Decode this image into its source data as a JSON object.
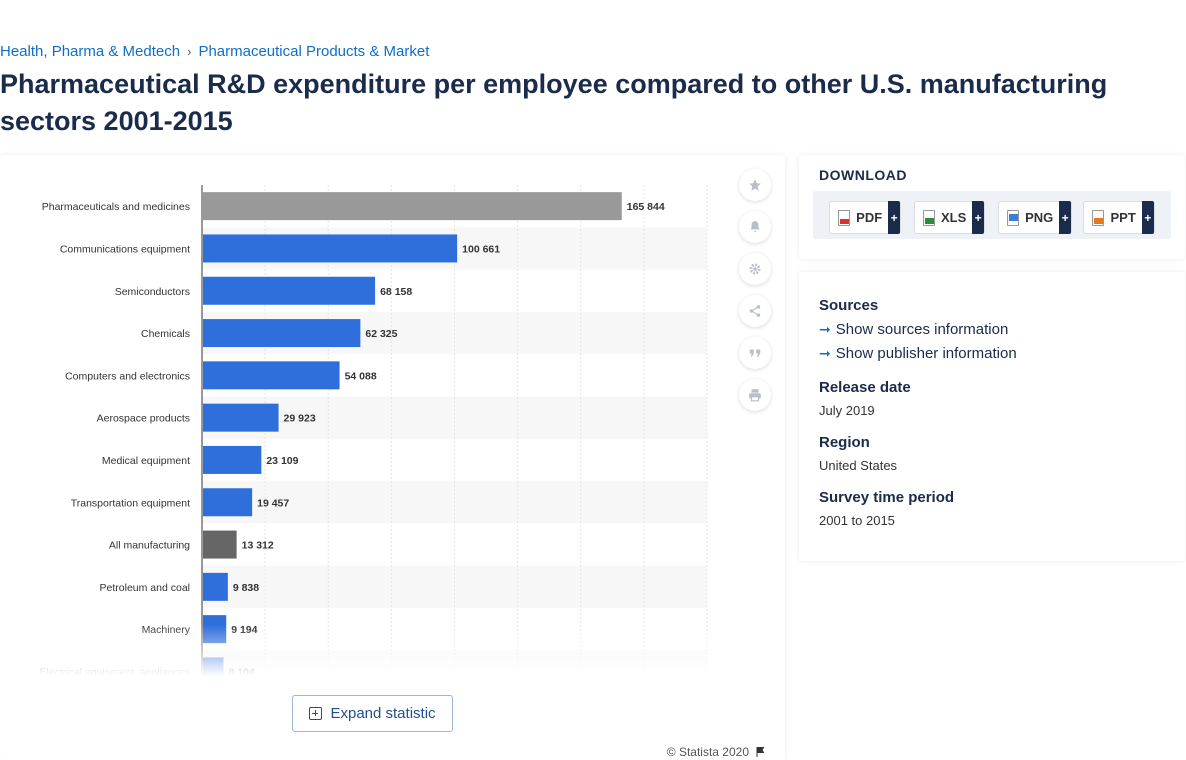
{
  "breadcrumb": {
    "item1": "Health, Pharma & Medtech",
    "separator": "›",
    "item2": "Pharmaceutical Products & Market"
  },
  "page_title": "Pharmaceutical R&D expenditure per employee compared to other U.S. manufacturing sectors 2001-2015",
  "chart_data": {
    "type": "bar",
    "orientation": "horizontal",
    "categories": [
      "Pharmaceuticals and medicines",
      "Communications equipment",
      "Semiconductors",
      "Chemicals",
      "Computers and electronics",
      "Aerospace products",
      "Medical equipment",
      "Transportation equipment",
      "All manufacturing",
      "Petroleum and coal",
      "Machinery",
      "Electrical equipment, appliances"
    ],
    "values": [
      165844,
      100661,
      68158,
      62325,
      54088,
      29923,
      23109,
      19457,
      13312,
      9838,
      9194,
      8104
    ],
    "value_labels": [
      "165 844",
      "100 661",
      "68 158",
      "62 325",
      "54 088",
      "29 923",
      "23 109",
      "19 457",
      "13 312",
      "9 838",
      "9 194",
      "8 104"
    ],
    "bar_colors": [
      "#999999",
      "#2f6fdc",
      "#2f6fdc",
      "#2f6fdc",
      "#2f6fdc",
      "#2f6fdc",
      "#2f6fdc",
      "#2f6fdc",
      "#666666",
      "#2f6fdc",
      "#2f6fdc",
      "#2f6fdc"
    ],
    "xlim": [
      0,
      200000
    ],
    "grid": true,
    "legend": "none"
  },
  "tools": {
    "favorite_icon": "star-icon",
    "alert_icon": "bell-icon",
    "settings_icon": "gear-icon",
    "share_icon": "share-icon",
    "cite_icon": "quote-icon",
    "print_icon": "printer-icon"
  },
  "expand_label": "Expand statistic",
  "copyright": "© Statista 2020",
  "download": {
    "title": "DOWNLOAD",
    "buttons": [
      {
        "label": "PDF",
        "color": "#d9332b"
      },
      {
        "label": "XLS",
        "color": "#2e8b3a"
      },
      {
        "label": "PNG",
        "color": "#3f7fd1"
      },
      {
        "label": "PPT",
        "color": "#e07a1f"
      }
    ],
    "plus": "+"
  },
  "sources": {
    "heading": "Sources",
    "show_sources": "Show sources information",
    "show_publisher": "Show publisher information",
    "release_date_label": "Release date",
    "release_date": "July 2019",
    "region_label": "Region",
    "region": "United States",
    "survey_label": "Survey time period",
    "survey_period": "2001 to 2015"
  }
}
